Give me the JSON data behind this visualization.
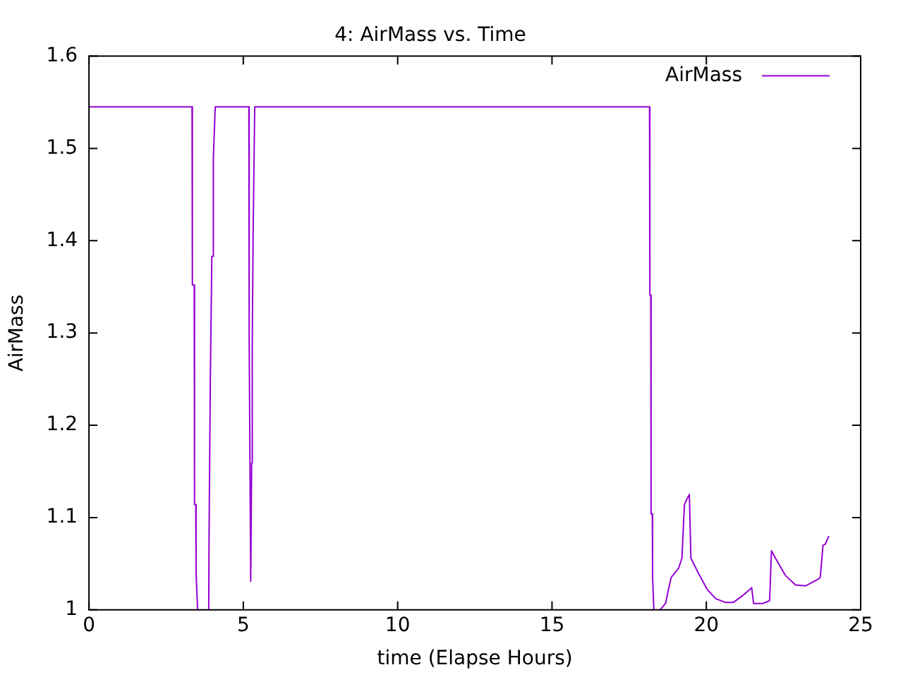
{
  "chart_data": {
    "type": "line",
    "title": "4: AirMass vs. Time",
    "xlabel": "time (Elapse Hours)",
    "ylabel": "AirMass",
    "xlim": [
      0,
      25
    ],
    "ylim": [
      1,
      1.6
    ],
    "xticks": [
      0,
      5,
      10,
      15,
      20,
      25
    ],
    "yticks": [
      1,
      1.1,
      1.2,
      1.3,
      1.4,
      1.5,
      1.6
    ],
    "grid": false,
    "legend": "top right",
    "marker": "none",
    "line_style": "solid",
    "series": [
      {
        "name": "AirMass",
        "color": "#9400d3",
        "x": [
          0,
          3.34,
          3.35,
          3.41,
          3.42,
          3.46,
          3.47,
          3.52,
          3.7,
          3.88,
          3.89,
          3.92,
          3.93,
          3.97,
          3.98,
          4.02,
          4.03,
          4.09,
          5.18,
          5.19,
          5.24,
          5.27,
          5.29,
          5.32,
          5.37,
          18.16,
          18.17,
          18.2,
          18.21,
          18.25,
          18.26,
          18.3,
          18.4,
          18.5,
          18.68,
          18.76,
          18.86,
          19.1,
          19.21,
          19.29,
          19.37,
          19.45,
          19.5,
          19.74,
          20.03,
          20.31,
          20.63,
          20.87,
          21.2,
          21.47,
          21.53,
          21.84,
          22.05,
          22.11,
          22.24,
          22.57,
          22.89,
          23.21,
          23.61,
          23.69,
          23.78,
          23.85,
          23.97
        ],
        "values": [
          1.545,
          1.545,
          1.352,
          1.352,
          1.114,
          1.114,
          1.039,
          1.0,
          null,
          1.0,
          1.081,
          1.081,
          1.244,
          1.244,
          1.383,
          1.383,
          1.49,
          1.545,
          1.545,
          1.292,
          1.031,
          1.159,
          1.29,
          1.416,
          1.545,
          1.545,
          1.341,
          1.341,
          1.104,
          1.104,
          1.035,
          1.0,
          null,
          1.0,
          1.007,
          1.02,
          1.035,
          1.045,
          1.056,
          1.114,
          1.12,
          1.125,
          1.056,
          1.04,
          1.022,
          1.012,
          1.008,
          1.008,
          1.016,
          1.024,
          1.007,
          1.007,
          1.01,
          1.064,
          1.056,
          1.037,
          1.027,
          1.026,
          1.033,
          1.035,
          1.07,
          1.071,
          1.08
        ]
      }
    ]
  }
}
